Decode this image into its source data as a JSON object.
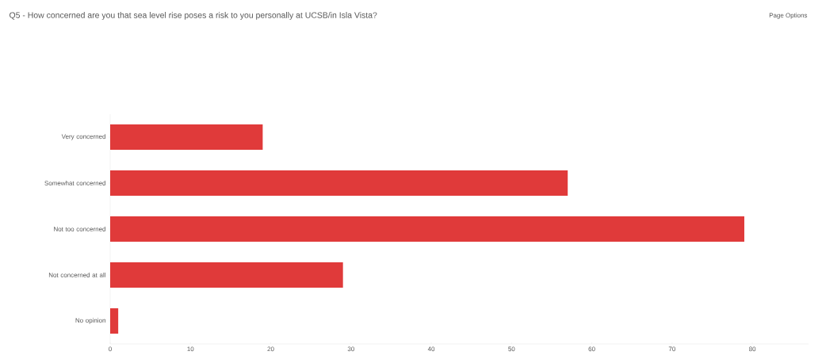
{
  "chart_data": {
    "type": "bar",
    "orientation": "horizontal",
    "title": "Q5 - How concerned are you that sea level rise poses a risk to you personally at UCSB/in Isla Vista?",
    "annotations": [
      "Page Options"
    ],
    "categories": [
      "Very concerned",
      "Somewhat concerned",
      "Not too concerned",
      "Not concerned at all",
      "No opinion"
    ],
    "values": [
      19,
      57,
      79,
      29,
      1
    ],
    "color": "#e03a3a",
    "xlim": [
      0,
      87
    ],
    "xticks": [
      0,
      10,
      20,
      30,
      40,
      50,
      60,
      70,
      80
    ],
    "grid": false
  }
}
